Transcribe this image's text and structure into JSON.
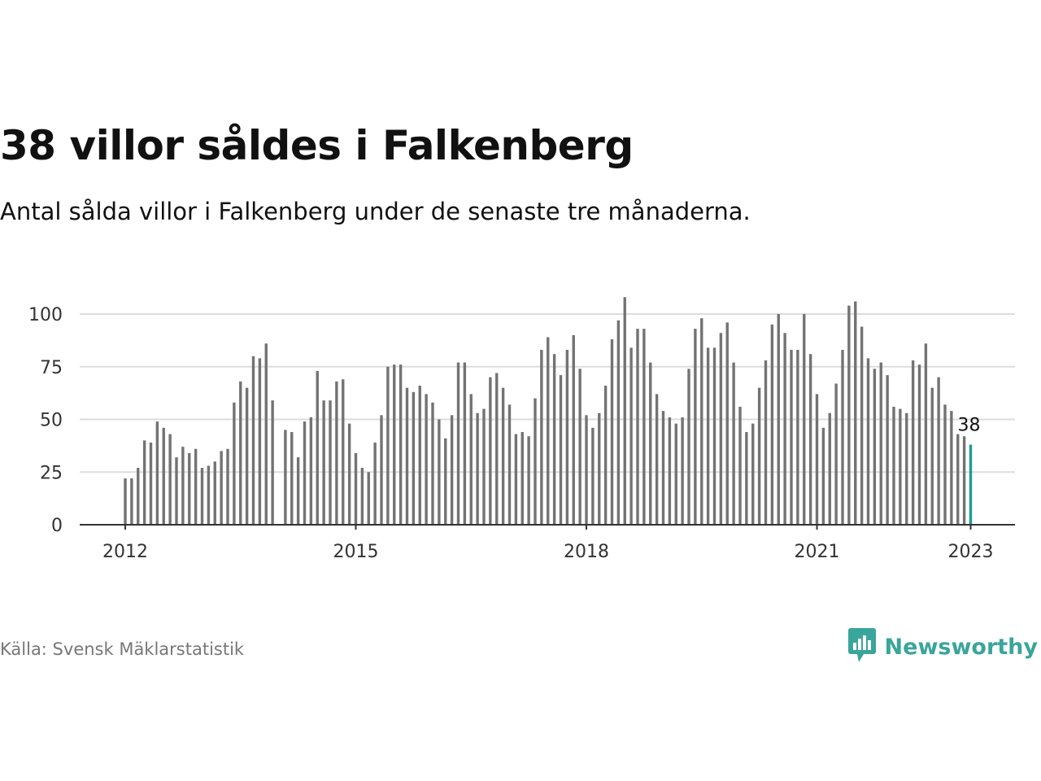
{
  "header": {
    "title": "38 villor såldes i Falkenberg",
    "subtitle": "Antal sålda villor i Falkenberg under de senaste tre månaderna."
  },
  "footer": {
    "source": "Källa: Svensk Mäklarstatistik",
    "brand": "Newsworthy",
    "brand_icon": "bar-chart-speech-bubble-icon"
  },
  "colors": {
    "bar": "#737373",
    "highlight": "#1a9e93",
    "brand": "#3aa59a",
    "grid": "#dddddd",
    "axis": "#333333"
  },
  "chart_data": {
    "type": "bar",
    "x_unit": "month",
    "x_start": "2012-01",
    "x_end": "2023-01",
    "ylim": [
      0,
      110
    ],
    "yticks": [
      0,
      25,
      50,
      75,
      100
    ],
    "xticks": [
      "2012",
      "2015",
      "2018",
      "2021",
      "2023"
    ],
    "grid": true,
    "highlight_last": true,
    "last_label": "38",
    "values": [
      22,
      22,
      27,
      40,
      39,
      49,
      46,
      43,
      32,
      37,
      34,
      36,
      27,
      28,
      30,
      35,
      36,
      58,
      68,
      65,
      80,
      79,
      86,
      59,
      null,
      45,
      44,
      32,
      49,
      51,
      73,
      59,
      59,
      68,
      69,
      48,
      34,
      27,
      25,
      39,
      52,
      75,
      76,
      76,
      65,
      63,
      66,
      62,
      58,
      50,
      41,
      52,
      77,
      77,
      62,
      53,
      55,
      70,
      72,
      65,
      57,
      43,
      44,
      42,
      60,
      83,
      89,
      81,
      71,
      83,
      90,
      74,
      52,
      46,
      53,
      66,
      88,
      97,
      108,
      84,
      93,
      93,
      77,
      62,
      54,
      51,
      48,
      51,
      74,
      93,
      98,
      84,
      84,
      91,
      96,
      77,
      56,
      44,
      48,
      65,
      78,
      95,
      100,
      91,
      83,
      83,
      100,
      81,
      62,
      46,
      53,
      67,
      83,
      104,
      106,
      94,
      79,
      74,
      77,
      71,
      56,
      55,
      53,
      78,
      76,
      86,
      65,
      70,
      57,
      54,
      43,
      42,
      38
    ]
  }
}
